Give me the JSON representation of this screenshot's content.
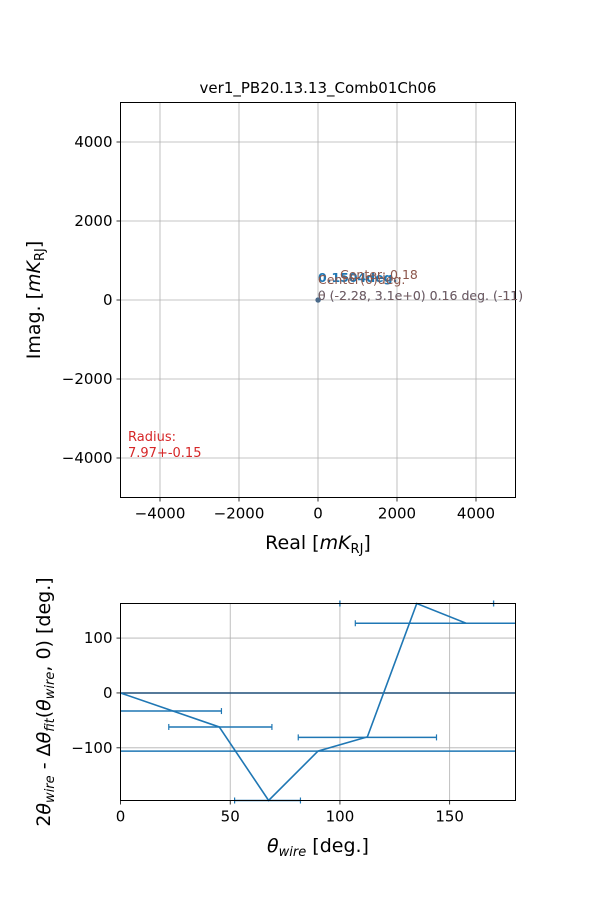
{
  "chart_data": [
    {
      "type": "scatter",
      "title": "ver1_PB20.13.13_Comb01Ch06",
      "xlabel": "Real [mK_RJ]",
      "ylabel": "Imag. [mK_RJ]",
      "xlim": [
        -5000,
        5000
      ],
      "ylim": [
        -5000,
        5000
      ],
      "xticks": [
        -4000,
        -2000,
        0,
        2000,
        4000
      ],
      "yticks": [
        -4000,
        -2000,
        0,
        2000,
        4000
      ],
      "xtick_labels": [
        "−4000",
        "−2000",
        "0",
        "2000",
        "4000"
      ],
      "ytick_labels": [
        "−4000",
        "−2000",
        "0",
        "2000",
        "4000"
      ],
      "grid": true,
      "points": [
        {
          "x": 0,
          "y": 0
        },
        {
          "x": 2,
          "y": 1
        },
        {
          "x": 4,
          "y": -1
        }
      ],
      "annotations": {
        "radius_label": "Radius:",
        "radius_value": "7.97+-0.15",
        "overlap_upper_top": "0.1504deg.",
        "overlap_upper_mid": "Center: 0.18",
        "overlap_upper_bottom": "Center(0)deg.",
        "overlap_lower": "θ (-2.28, 3.1e+0) 0.16 deg. (-11)",
        "colors": {
          "blue": "#1f77b4",
          "brown": "#8c564b",
          "red": "#d62728"
        }
      }
    },
    {
      "type": "line",
      "xlabel": "θ_wire [deg.]",
      "ylabel": "2θ_wire - Δθ_fit(θ_wire, 0) [deg.]",
      "xlim": [
        0,
        180
      ],
      "ylim": [
        -196,
        163
      ],
      "xticks": [
        0,
        50,
        100,
        150
      ],
      "yticks": [
        -100,
        0,
        100
      ],
      "xtick_labels": [
        "0",
        "50",
        "100",
        "150"
      ],
      "ytick_labels": [
        "−100",
        "0",
        "100"
      ],
      "grid": true,
      "series_line": {
        "x": [
          0,
          45,
          67.5,
          90,
          112.5,
          135,
          157.5,
          180
        ],
        "y": [
          0,
          -62,
          -196,
          -106,
          -80,
          163,
          127,
          127
        ]
      },
      "errorbars": [
        {
          "x": 11,
          "y": -33,
          "xmin": 0,
          "xmax": 46
        },
        {
          "x": 45,
          "y": -62,
          "xmin": 22,
          "xmax": 69
        },
        {
          "x": 56,
          "y": -196,
          "xmin": 52,
          "xmax": 82
        },
        {
          "x": 113,
          "y": -81,
          "xmin": 81,
          "xmax": 144
        },
        {
          "x": 140,
          "y": 127,
          "xmin": 107,
          "xmax": 180
        },
        {
          "x": 100,
          "y": 163,
          "xmin": 100,
          "xmax": 100
        },
        {
          "x": 170,
          "y": 163,
          "xmin": 170,
          "xmax": 170
        }
      ],
      "hlines": [
        {
          "y": 0,
          "color": "#1f4e79"
        },
        {
          "y": -106,
          "color": "#1f77b4"
        }
      ],
      "color": "#1f77b4"
    }
  ]
}
